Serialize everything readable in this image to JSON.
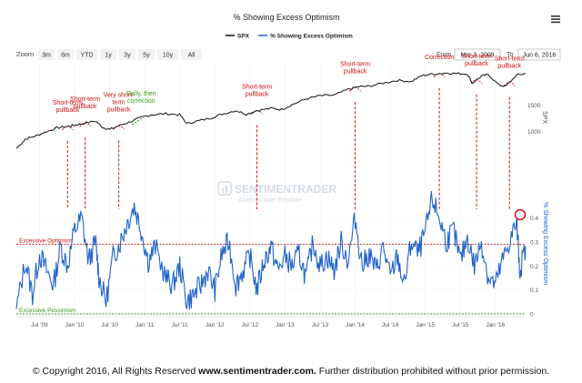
{
  "chart_data": {
    "type": "line",
    "title": "% Showing Excess Optimism",
    "legend": {
      "placement": "top-center",
      "items": [
        {
          "name": "SPX",
          "color": "#111111"
        },
        {
          "name": "% Showing Excess Optimism",
          "color": "#1f63c8"
        }
      ]
    },
    "zoom": {
      "label": "Zoom",
      "options": [
        "3m",
        "6m",
        "YTD",
        "1y",
        "3y",
        "5y",
        "10y",
        "All"
      ]
    },
    "range": {
      "from_label": "From",
      "from": "Mar 3, 2009",
      "to_label": "To",
      "to": "Jun 6, 2016"
    },
    "x_ticks": [
      "Jul '09",
      "Jan '10",
      "Jul '10",
      "Jan '11",
      "Jul '11",
      "Jan '12",
      "Jul '12",
      "Jan '13",
      "Jul '13",
      "Jan '14",
      "Jul '14",
      "Jan '15",
      "Jul '15",
      "Jan '16"
    ],
    "x_tick_years": [
      2009.5,
      2010.0,
      2010.5,
      2011.0,
      2011.5,
      2012.0,
      2012.5,
      2013.0,
      2013.5,
      2014.0,
      2014.5,
      2015.0,
      2015.5,
      2016.0
    ],
    "xlim": [
      2009.17,
      2016.43
    ],
    "spx_axis": {
      "label": "SPX",
      "ticks": [
        "1000",
        "1500"
      ],
      "tick_values": [
        1000,
        1500
      ],
      "ylim": [
        650,
        2200
      ]
    },
    "optimism_axis": {
      "label": "% Showing Excess Optimism",
      "ticks": [
        "0",
        "0.1",
        "0.2",
        "0.3",
        "0.4"
      ],
      "tick_values": [
        0,
        0.1,
        0.2,
        0.3,
        0.4
      ],
      "ylim": [
        0,
        0.55
      ]
    },
    "thresholds": [
      {
        "label": "Excessive Optimism",
        "value": 0.29,
        "color": "#d01010"
      },
      {
        "label": "Excessive Pessimism",
        "value": 0.0,
        "color": "#3a9a1a"
      }
    ],
    "spx": {
      "x": [
        2009.17,
        2009.3,
        2009.45,
        2009.6,
        2009.75,
        2009.9,
        2010.0,
        2010.1,
        2010.3,
        2010.4,
        2010.5,
        2010.65,
        2010.8,
        2010.95,
        2011.1,
        2011.3,
        2011.5,
        2011.6,
        2011.75,
        2011.95,
        2012.1,
        2012.3,
        2012.45,
        2012.6,
        2012.8,
        2012.95,
        2013.1,
        2013.3,
        2013.5,
        2013.7,
        2013.9,
        2014.05,
        2014.2,
        2014.4,
        2014.6,
        2014.8,
        2014.95,
        2015.1,
        2015.3,
        2015.45,
        2015.6,
        2015.67,
        2015.8,
        2015.9,
        2016.05,
        2016.15,
        2016.3,
        2016.43
      ],
      "values": [
        680,
        860,
        920,
        1000,
        1070,
        1100,
        1120,
        1150,
        1200,
        1080,
        1040,
        1120,
        1190,
        1270,
        1320,
        1340,
        1320,
        1150,
        1200,
        1260,
        1330,
        1400,
        1330,
        1400,
        1440,
        1420,
        1510,
        1620,
        1680,
        1690,
        1800,
        1850,
        1860,
        1920,
        1970,
        1950,
        2060,
        2090,
        2110,
        2100,
        2090,
        1920,
        2050,
        2080,
        1880,
        1860,
        2070,
        2100
      ]
    },
    "optimism": {
      "x": [
        2009.17,
        2009.3,
        2009.4,
        2009.5,
        2009.6,
        2009.7,
        2009.8,
        2009.9,
        2010.0,
        2010.1,
        2010.2,
        2010.3,
        2010.35,
        2010.45,
        2010.55,
        2010.65,
        2010.75,
        2010.85,
        2010.95,
        2011.05,
        2011.15,
        2011.3,
        2011.4,
        2011.5,
        2011.6,
        2011.7,
        2011.8,
        2011.9,
        2012.0,
        2012.1,
        2012.2,
        2012.3,
        2012.4,
        2012.5,
        2012.6,
        2012.7,
        2012.8,
        2012.9,
        2013.0,
        2013.1,
        2013.2,
        2013.3,
        2013.4,
        2013.5,
        2013.6,
        2013.7,
        2013.8,
        2013.9,
        2014.0,
        2014.1,
        2014.2,
        2014.3,
        2014.4,
        2014.5,
        2014.6,
        2014.7,
        2014.8,
        2014.9,
        2015.0,
        2015.1,
        2015.2,
        2015.3,
        2015.4,
        2015.5,
        2015.6,
        2015.7,
        2015.8,
        2015.9,
        2016.0,
        2016.1,
        2016.2,
        2016.3,
        2016.35,
        2016.43
      ],
      "values": [
        0.02,
        0.22,
        0.08,
        0.25,
        0.18,
        0.12,
        0.28,
        0.2,
        0.35,
        0.4,
        0.22,
        0.3,
        0.15,
        0.05,
        0.24,
        0.3,
        0.38,
        0.45,
        0.35,
        0.22,
        0.28,
        0.15,
        0.12,
        0.2,
        0.05,
        0.08,
        0.12,
        0.18,
        0.1,
        0.25,
        0.3,
        0.12,
        0.18,
        0.24,
        0.1,
        0.22,
        0.28,
        0.18,
        0.24,
        0.2,
        0.25,
        0.15,
        0.3,
        0.2,
        0.24,
        0.18,
        0.3,
        0.22,
        0.4,
        0.2,
        0.25,
        0.18,
        0.28,
        0.15,
        0.24,
        0.12,
        0.3,
        0.25,
        0.34,
        0.48,
        0.4,
        0.3,
        0.35,
        0.22,
        0.32,
        0.2,
        0.3,
        0.15,
        0.12,
        0.22,
        0.3,
        0.38,
        0.18,
        0.28
      ]
    },
    "annotations": [
      {
        "text": [
          "Short-term",
          "pullback"
        ],
        "x": 2009.9,
        "color": "#d01010"
      },
      {
        "text": [
          "Short-term",
          "pullback"
        ],
        "x": 2010.15,
        "color": "#d01010"
      },
      {
        "text": [
          "Very short-",
          "term",
          "pullback"
        ],
        "x": 2010.63,
        "color": "#d01010"
      },
      {
        "text": [
          "Rally, then",
          "correction"
        ],
        "x": 2010.95,
        "color": "#3a9a1a"
      },
      {
        "text": [
          "Short-term",
          "pullback"
        ],
        "x": 2012.6,
        "color": "#d01010"
      },
      {
        "text": [
          "Short-term",
          "pullback"
        ],
        "x": 2014.0,
        "color": "#d01010"
      },
      {
        "text": [
          "Correction"
        ],
        "x": 2015.2,
        "color": "#d01010"
      },
      {
        "text": [
          "Short-term",
          "pullback"
        ],
        "x": 2015.73,
        "color": "#d01010"
      },
      {
        "text": [
          "Short-term",
          "pullback"
        ],
        "x": 2016.2,
        "color": "#d01010"
      }
    ],
    "watermark": {
      "brand": "SENTIMENTRADER",
      "tagline": "Analysis over Emotion"
    }
  },
  "menu_icon": "hamburger-menu-icon",
  "footer": {
    "prefix": "© Copyright 2016, All Rights Reserved ",
    "site": "www.sentimentrader.com.",
    "suffix": " Further distribution prohibited without prior permission."
  }
}
